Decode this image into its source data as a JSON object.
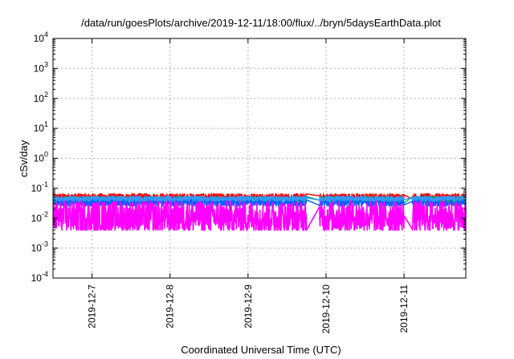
{
  "chart_data": {
    "type": "line",
    "title": "/data/run/goesPlots/archive/2019-12-11/18:00/flux/../bryn/5daysEarthData.plot",
    "xlabel": "Coordinated Universal Time (UTC)",
    "ylabel": "cSv/day",
    "yscale": "log",
    "ylim": [
      0.0001,
      10000
    ],
    "yticks": [
      {
        "base": "10",
        "exp": "-4",
        "value": 0.0001
      },
      {
        "base": "10",
        "exp": "-3",
        "value": 0.001
      },
      {
        "base": "10",
        "exp": "-2",
        "value": 0.01
      },
      {
        "base": "10",
        "exp": "-1",
        "value": 0.1
      },
      {
        "base": "10",
        "exp": "0",
        "value": 1
      },
      {
        "base": "10",
        "exp": "1",
        "value": 10
      },
      {
        "base": "10",
        "exp": "2",
        "value": 100
      },
      {
        "base": "10",
        "exp": "3",
        "value": 1000
      },
      {
        "base": "10",
        "exp": "4",
        "value": 10000
      }
    ],
    "xlim": [
      "2019-12-06T12:00",
      "2019-12-11T19:00"
    ],
    "xticks": [
      "2019-12-7",
      "2019-12-8",
      "2019-12-9",
      "2019-12-10",
      "2019-12-11"
    ],
    "grid": true,
    "legend": "none",
    "gaps": [
      [
        "2019-12-09T18:00",
        "2019-12-09T22:00"
      ],
      [
        "2019-12-11T00:00",
        "2019-12-11T02:30"
      ]
    ],
    "series": [
      {
        "color": "#ff0000",
        "typical": 0.052,
        "spread": 0.3
      },
      {
        "color": "#00b050",
        "typical": 0.04,
        "spread": 0.35
      },
      {
        "color": "#0060ff",
        "typical": 0.033,
        "spread": 0.35
      },
      {
        "color": "#3399ff",
        "typical": 0.045,
        "spread": 0.25
      },
      {
        "color": "#ff00ff",
        "typical": 0.011,
        "spread": 0.9
      }
    ]
  }
}
